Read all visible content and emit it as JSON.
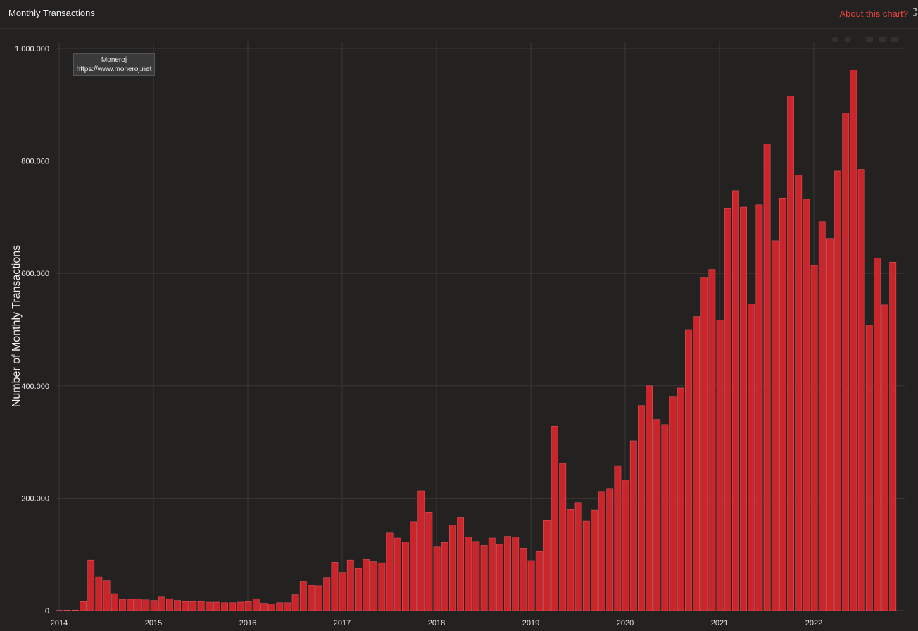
{
  "header": {
    "title": "Monthly Transactions",
    "about_label": "About this chart?"
  },
  "watermark": {
    "line1": "Moneroj",
    "line2": "https://www.moneroj.net"
  },
  "colors": {
    "background": "#242121",
    "bar": "#c9252b",
    "bar_border": "#e4545a",
    "accent": "#e8463c",
    "grid": "#3a3636"
  },
  "chart_data": {
    "type": "bar",
    "title": "Monthly Transactions",
    "ylabel": "Number of Monthly Transactions",
    "xlabel": "",
    "ylim": [
      0,
      1000000
    ],
    "yticks": [
      0,
      200000,
      400000,
      600000,
      800000,
      1000000
    ],
    "ytick_labels": [
      "0",
      "200.000",
      "400.000",
      "600.000",
      "800.000",
      "1.000.000"
    ],
    "xticks": [
      "2014",
      "2015",
      "2016",
      "2017",
      "2018",
      "2019",
      "2020",
      "2021",
      "2022"
    ],
    "x_start": "2014-01",
    "grid": true,
    "legend": "none",
    "categories": [
      "2014-01",
      "2014-02",
      "2014-03",
      "2014-04",
      "2014-05",
      "2014-06",
      "2014-07",
      "2014-08",
      "2014-09",
      "2014-10",
      "2014-11",
      "2014-12",
      "2015-01",
      "2015-02",
      "2015-03",
      "2015-04",
      "2015-05",
      "2015-06",
      "2015-07",
      "2015-08",
      "2015-09",
      "2015-10",
      "2015-11",
      "2015-12",
      "2016-01",
      "2016-02",
      "2016-03",
      "2016-04",
      "2016-05",
      "2016-06",
      "2016-07",
      "2016-08",
      "2016-09",
      "2016-10",
      "2016-11",
      "2016-12",
      "2017-01",
      "2017-02",
      "2017-03",
      "2017-04",
      "2017-05",
      "2017-06",
      "2017-07",
      "2017-08",
      "2017-09",
      "2017-10",
      "2017-11",
      "2017-12",
      "2018-01",
      "2018-02",
      "2018-03",
      "2018-04",
      "2018-05",
      "2018-06",
      "2018-07",
      "2018-08",
      "2018-09",
      "2018-10",
      "2018-11",
      "2018-12",
      "2019-01",
      "2019-02",
      "2019-03",
      "2019-04",
      "2019-05",
      "2019-06",
      "2019-07",
      "2019-08",
      "2019-09",
      "2019-10",
      "2019-11",
      "2019-12",
      "2020-01",
      "2020-02",
      "2020-03",
      "2020-04",
      "2020-05",
      "2020-06",
      "2020-07",
      "2020-08",
      "2020-09",
      "2020-10",
      "2020-11",
      "2020-12",
      "2021-01",
      "2021-02",
      "2021-03",
      "2021-04",
      "2021-05",
      "2021-06",
      "2021-07",
      "2021-08",
      "2021-09",
      "2021-10",
      "2021-11",
      "2021-12",
      "2022-01",
      "2022-02",
      "2022-03",
      "2022-04",
      "2022-05",
      "2022-06",
      "2022-07",
      "2022-08",
      "2022-09",
      "2022-10",
      "2022-11",
      "2022-12"
    ],
    "values": [
      500,
      800,
      1000,
      16000,
      90000,
      60000,
      53000,
      30000,
      20000,
      20000,
      21000,
      19000,
      18000,
      24000,
      21000,
      18000,
      16000,
      16000,
      16000,
      15000,
      15000,
      14000,
      14000,
      15000,
      16000,
      21000,
      13000,
      12000,
      14000,
      14000,
      28000,
      52000,
      45000,
      44000,
      58000,
      86000,
      68000,
      90000,
      75000,
      91000,
      87000,
      85000,
      138000,
      129000,
      122000,
      158000,
      213000,
      175000,
      113000,
      121000,
      152000,
      166000,
      131000,
      123000,
      116000,
      129000,
      118000,
      132000,
      131000,
      111000,
      89000,
      105000,
      160000,
      328000,
      262000,
      180000,
      192000,
      159000,
      179000,
      212000,
      217000,
      258000,
      232000,
      302000,
      365000,
      400000,
      340000,
      331000,
      380000,
      396000,
      500000,
      523000,
      592000,
      607000,
      517000,
      715000,
      747000,
      718000,
      546000,
      722000,
      830000,
      658000,
      734000,
      915000,
      775000,
      732000,
      614000,
      692000,
      662000,
      782000,
      885000,
      962000,
      785000,
      508000,
      627000,
      544000,
      620000,
      0
    ]
  }
}
